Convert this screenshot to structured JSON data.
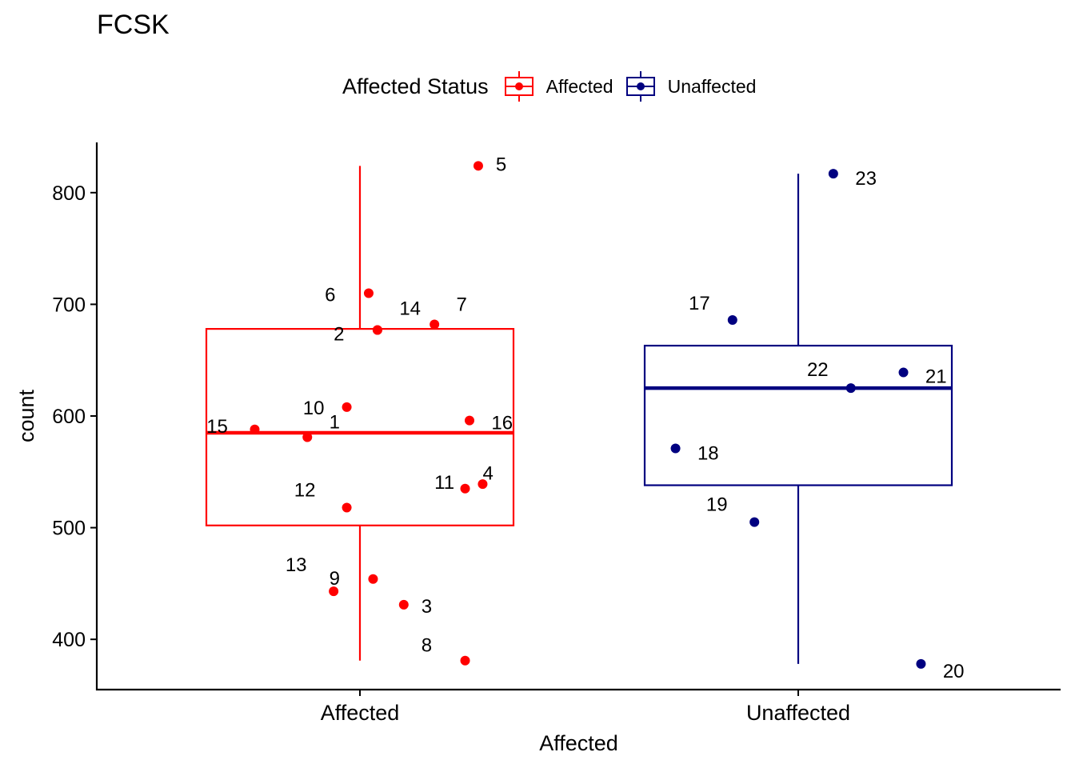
{
  "chart_data": {
    "type": "boxplot",
    "title": "FCSK",
    "xlabel": "Affected",
    "ylabel": "count",
    "categories": [
      "Affected",
      "Unaffected"
    ],
    "ylim": [
      355,
      845
    ],
    "yticks": [
      400,
      500,
      600,
      700,
      800
    ],
    "grid": false,
    "legend": {
      "title": "Affected Status",
      "position": "top",
      "entries": [
        {
          "label": "Affected",
          "color": "#FF0000"
        },
        {
          "label": "Unaffected",
          "color": "#000080"
        }
      ]
    },
    "boxes": [
      {
        "category": "Affected",
        "color": "#FF0000",
        "whisker_low": 381,
        "q1": 502,
        "median": 585,
        "q3": 678,
        "whisker_high": 824
      },
      {
        "category": "Unaffected",
        "color": "#000080",
        "whisker_low": 378,
        "q1": 538,
        "median": 625,
        "q3": 663,
        "whisker_high": 817
      }
    ],
    "points": [
      {
        "label": "1",
        "group": "Affected",
        "jitter": -0.12,
        "y": 581,
        "label_dx": 0.05,
        "label_dy": -11
      },
      {
        "label": "2",
        "group": "Affected",
        "jitter": 0.04,
        "y": 677,
        "label_dx": -0.1,
        "label_dy": 13
      },
      {
        "label": "3",
        "group": "Affected",
        "jitter": 0.1,
        "y": 431,
        "label_dx": 0.04,
        "label_dy": 10
      },
      {
        "label": "4",
        "group": "Affected",
        "jitter": 0.24,
        "y": 535,
        "label_dx": 0.04,
        "label_dy": -11
      },
      {
        "label": "5",
        "group": "Affected",
        "jitter": 0.27,
        "y": 824,
        "label_dx": 0.04,
        "label_dy": 6
      },
      {
        "label": "6",
        "group": "Affected",
        "jitter": 0.02,
        "y": 710,
        "label_dx": -0.1,
        "label_dy": 10
      },
      {
        "label": "7",
        "group": "Affected",
        "jitter": 0.17,
        "y": 682,
        "label_dx": 0.05,
        "label_dy": -17
      },
      {
        "label": "8",
        "group": "Affected",
        "jitter": 0.24,
        "y": 381,
        "label_dx": -0.1,
        "label_dy": -11
      },
      {
        "label": "9",
        "group": "Affected",
        "jitter": 0.03,
        "y": 454,
        "label_dx": -0.1,
        "label_dy": 7
      },
      {
        "label": "10",
        "group": "Affected",
        "jitter": -0.03,
        "y": 608,
        "label_dx": -0.1,
        "label_dy": 9
      },
      {
        "label": "11",
        "group": "Affected",
        "jitter": 0.28,
        "y": 539,
        "label_dx": -0.11,
        "label_dy": 6
      },
      {
        "label": "12",
        "group": "Affected",
        "jitter": -0.03,
        "y": 518,
        "label_dx": -0.12,
        "label_dy": -14
      },
      {
        "label": "13",
        "group": "Affected",
        "jitter": -0.06,
        "y": 443,
        "label_dx": -0.11,
        "label_dy": -25
      },
      {
        "label": "14",
        "group": "Affected",
        "jitter": 0.04,
        "y": 677,
        "label_dx": 0.05,
        "label_dy": -19
      },
      {
        "label": "15",
        "group": "Affected",
        "jitter": -0.24,
        "y": 588,
        "label_dx": -0.11,
        "label_dy": 4
      },
      {
        "label": "16",
        "group": "Affected",
        "jitter": 0.25,
        "y": 596,
        "label_dx": 0.05,
        "label_dy": 11
      },
      {
        "label": "17",
        "group": "Unaffected",
        "jitter": -0.15,
        "y": 686,
        "label_dx": -0.1,
        "label_dy": -13
      },
      {
        "label": "18",
        "group": "Unaffected",
        "jitter": -0.28,
        "y": 571,
        "label_dx": 0.05,
        "label_dy": 14
      },
      {
        "label": "19",
        "group": "Unaffected",
        "jitter": -0.1,
        "y": 505,
        "label_dx": -0.11,
        "label_dy": -14
      },
      {
        "label": "20",
        "group": "Unaffected",
        "jitter": 0.28,
        "y": 378,
        "label_dx": 0.05,
        "label_dy": 17
      },
      {
        "label": "21",
        "group": "Unaffected",
        "jitter": 0.24,
        "y": 639,
        "label_dx": 0.05,
        "label_dy": 13
      },
      {
        "label": "22",
        "group": "Unaffected",
        "jitter": 0.12,
        "y": 625,
        "label_dx": -0.1,
        "label_dy": -15
      },
      {
        "label": "23",
        "group": "Unaffected",
        "jitter": 0.08,
        "y": 817,
        "label_dx": 0.05,
        "label_dy": 14
      }
    ]
  }
}
